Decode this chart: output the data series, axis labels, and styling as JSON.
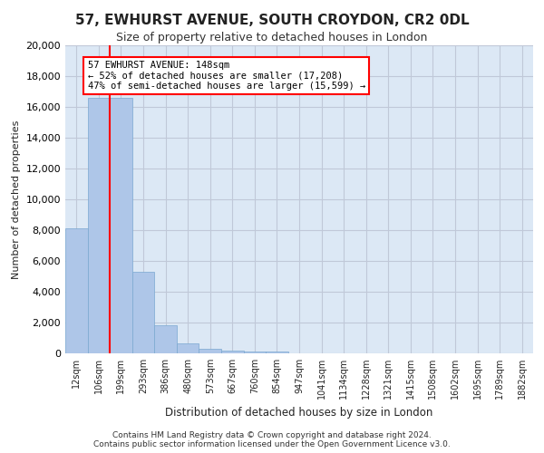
{
  "title_line1": "57, EWHURST AVENUE, SOUTH CROYDON, CR2 0DL",
  "title_line2": "Size of property relative to detached houses in London",
  "xlabel": "Distribution of detached houses by size in London",
  "ylabel": "Number of detached properties",
  "bar_categories": [
    "12sqm",
    "106sqm",
    "199sqm",
    "293sqm",
    "386sqm",
    "480sqm",
    "573sqm",
    "667sqm",
    "760sqm",
    "854sqm",
    "947sqm",
    "1041sqm",
    "1134sqm",
    "1228sqm",
    "1321sqm",
    "1415sqm",
    "1508sqm",
    "1602sqm",
    "1695sqm",
    "1789sqm",
    "1882sqm"
  ],
  "bar_values": [
    8100,
    16600,
    16600,
    5300,
    1800,
    650,
    320,
    180,
    130,
    100,
    0,
    0,
    0,
    0,
    0,
    0,
    0,
    0,
    0,
    0,
    0
  ],
  "bar_color": "#aec6e8",
  "bar_edge_color": "#7aA8d0",
  "property_size": 148,
  "property_bin_index": 1,
  "red_line_x": 1.5,
  "annotation_text": "57 EWHURST AVENUE: 148sqm\n← 52% of detached houses are smaller (17,208)\n47% of semi-detached houses are larger (15,599) →",
  "annotation_box_color": "#ff0000",
  "ylim": [
    0,
    20000
  ],
  "yticks": [
    0,
    2000,
    4000,
    6000,
    8000,
    10000,
    12000,
    14000,
    16000,
    18000,
    20000
  ],
  "grid_color": "#c0c8d8",
  "bg_color": "#dce8f5",
  "footer_line1": "Contains HM Land Registry data © Crown copyright and database right 2024.",
  "footer_line2": "Contains public sector information licensed under the Open Government Licence v3.0."
}
